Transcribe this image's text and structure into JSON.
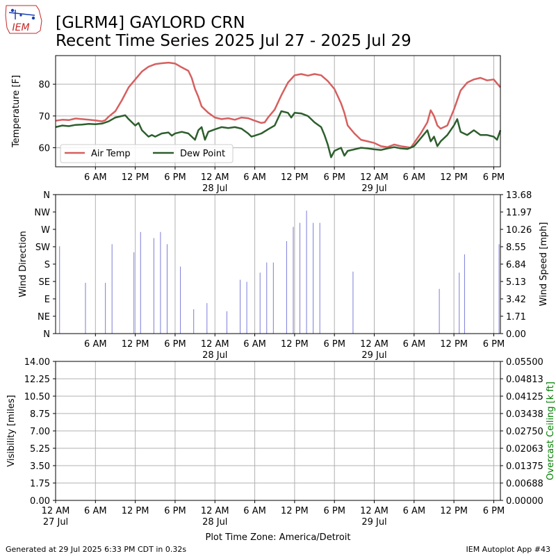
{
  "header": {
    "logo_text": "IEM",
    "title_line1": "[GLRM4] GAYLORD CRN",
    "title_line2": "Recent Time Series 2025 Jul 27 - 2025 Jul 29"
  },
  "footer": {
    "generated": "Generated at 29 Jul 2025 6:33 PM CDT in 0.32s",
    "app": "IEM Autoplot App #43",
    "xlabel": "Plot Time Zone: America/Detroit"
  },
  "colors": {
    "air_temp": "#d65f5f",
    "dew_point": "#2d5e2d",
    "wind": "#7b7bd8",
    "grid": "#b0b0b0",
    "ceiling_label": "#008000",
    "logo": "#1a3fb0",
    "logo_text": "#c62828"
  },
  "chart_data": [
    {
      "type": "line",
      "title": "",
      "xlabel": "",
      "ylabel": "Temperature [F]",
      "x_range_hours": [
        0,
        67
      ],
      "ylim": [
        54,
        89
      ],
      "yticks": [
        60,
        70,
        80
      ],
      "xticks": [
        {
          "hour": 6,
          "label": "6 AM"
        },
        {
          "hour": 12,
          "label": "12 PM"
        },
        {
          "hour": 18,
          "label": "6 PM"
        },
        {
          "hour": 24,
          "label": "12 AM",
          "sub": "28 Jul"
        },
        {
          "hour": 30,
          "label": "6 AM"
        },
        {
          "hour": 36,
          "label": "12 PM"
        },
        {
          "hour": 42,
          "label": "6 PM"
        },
        {
          "hour": 48,
          "label": "12 AM",
          "sub": "29 Jul"
        },
        {
          "hour": 54,
          "label": "6 AM"
        },
        {
          "hour": 60,
          "label": "12 PM"
        },
        {
          "hour": 66,
          "label": "6 PM"
        }
      ],
      "grid": true,
      "legend_position": "lower-left",
      "series": [
        {
          "name": "Air Temp",
          "color_key": "air_temp",
          "points": [
            [
              0,
              68.5
            ],
            [
              1,
              68.8
            ],
            [
              2,
              68.7
            ],
            [
              3,
              69.2
            ],
            [
              4,
              69
            ],
            [
              5,
              68.8
            ],
            [
              6,
              68.6
            ],
            [
              7,
              68.3
            ],
            [
              7.5,
              68.7
            ],
            [
              8,
              69.8
            ],
            [
              9,
              71.5
            ],
            [
              10,
              75
            ],
            [
              11,
              79
            ],
            [
              12,
              81.5
            ],
            [
              13,
              84
            ],
            [
              14,
              85.5
            ],
            [
              15,
              86.3
            ],
            [
              16,
              86.6
            ],
            [
              17,
              86.8
            ],
            [
              18,
              86.5
            ],
            [
              19,
              85.3
            ],
            [
              20,
              84.2
            ],
            [
              20.5,
              82
            ],
            [
              21,
              78.5
            ],
            [
              21.5,
              76
            ],
            [
              22,
              73
            ],
            [
              23,
              71
            ],
            [
              24,
              69.5
            ],
            [
              25,
              69
            ],
            [
              26,
              69.3
            ],
            [
              27,
              68.8
            ],
            [
              28,
              69.5
            ],
            [
              29,
              69.3
            ],
            [
              30,
              68.5
            ],
            [
              31,
              67.8
            ],
            [
              31.5,
              68
            ],
            [
              32,
              69.5
            ],
            [
              33,
              72
            ],
            [
              34,
              76.5
            ],
            [
              35,
              80.5
            ],
            [
              36,
              82.8
            ],
            [
              37,
              83.2
            ],
            [
              38,
              82.7
            ],
            [
              39,
              83.2
            ],
            [
              40,
              82.8
            ],
            [
              41,
              81
            ],
            [
              42,
              78.5
            ],
            [
              43,
              74
            ],
            [
              43.5,
              71
            ],
            [
              44,
              67
            ],
            [
              45,
              64.5
            ],
            [
              46,
              62.5
            ],
            [
              47,
              62
            ],
            [
              48,
              61.5
            ],
            [
              49,
              60.5
            ],
            [
              50,
              60.2
            ],
            [
              51,
              61
            ],
            [
              52,
              60.5
            ],
            [
              53,
              60.2
            ],
            [
              53.5,
              60
            ],
            [
              54,
              61.5
            ],
            [
              55,
              64.5
            ],
            [
              56,
              68
            ],
            [
              56.5,
              71.8
            ],
            [
              57,
              70
            ],
            [
              57.5,
              67
            ],
            [
              58,
              66
            ],
            [
              59,
              67
            ],
            [
              60,
              72
            ],
            [
              61,
              78
            ],
            [
              62,
              80.5
            ],
            [
              63,
              81.5
            ],
            [
              64,
              82
            ],
            [
              65,
              81.2
            ],
            [
              66,
              81.5
            ],
            [
              67,
              79
            ]
          ]
        },
        {
          "name": "Dew Point",
          "color_key": "dew_point",
          "points": [
            [
              0,
              66.5
            ],
            [
              1,
              67
            ],
            [
              2,
              66.8
            ],
            [
              3,
              67.2
            ],
            [
              4,
              67.3
            ],
            [
              5,
              67.5
            ],
            [
              6,
              67.4
            ],
            [
              7,
              67.6
            ],
            [
              8,
              68.3
            ],
            [
              9,
              69.5
            ],
            [
              10,
              70
            ],
            [
              10.5,
              70.2
            ],
            [
              11,
              69
            ],
            [
              12,
              67
            ],
            [
              12.5,
              67.8
            ],
            [
              13,
              65.5
            ],
            [
              14,
              63.5
            ],
            [
              14.5,
              64
            ],
            [
              15,
              63.5
            ],
            [
              16,
              64.5
            ],
            [
              17,
              64.8
            ],
            [
              17.5,
              63.8
            ],
            [
              18,
              64.5
            ],
            [
              19,
              65
            ],
            [
              20,
              64.5
            ],
            [
              21,
              62.5
            ],
            [
              21.5,
              65.5
            ],
            [
              22,
              66.5
            ],
            [
              22.5,
              62.5
            ],
            [
              23,
              65
            ],
            [
              24,
              65.8
            ],
            [
              25,
              66.5
            ],
            [
              26,
              66.2
            ],
            [
              27,
              66.5
            ],
            [
              28,
              66
            ],
            [
              29,
              64.5
            ],
            [
              29.5,
              63.5
            ],
            [
              30,
              63.8
            ],
            [
              31,
              64.5
            ],
            [
              32,
              65.8
            ],
            [
              33,
              67
            ],
            [
              34,
              71.5
            ],
            [
              35,
              71
            ],
            [
              35.5,
              69.5
            ],
            [
              36,
              71
            ],
            [
              37,
              70.8
            ],
            [
              38,
              70
            ],
            [
              39,
              68
            ],
            [
              40,
              66.5
            ],
            [
              40.5,
              64
            ],
            [
              41,
              61
            ],
            [
              41.5,
              57
            ],
            [
              42,
              59
            ],
            [
              43,
              60
            ],
            [
              43.5,
              57.5
            ],
            [
              44,
              59
            ],
            [
              45,
              59.5
            ],
            [
              46,
              60
            ],
            [
              47,
              59.8
            ],
            [
              48,
              59.5
            ],
            [
              49,
              59.3
            ],
            [
              50,
              59.8
            ],
            [
              51,
              60.2
            ],
            [
              52,
              59.8
            ],
            [
              53,
              59.6
            ],
            [
              54,
              60.5
            ],
            [
              55,
              63
            ],
            [
              56,
              65.5
            ],
            [
              56.5,
              62
            ],
            [
              57,
              63.5
            ],
            [
              57.5,
              60.5
            ],
            [
              58,
              62
            ],
            [
              59,
              64
            ],
            [
              60,
              67
            ],
            [
              60.5,
              69
            ],
            [
              61,
              65
            ],
            [
              62,
              64
            ],
            [
              63,
              65.5
            ],
            [
              64,
              64
            ],
            [
              65,
              64
            ],
            [
              66,
              63.5
            ],
            [
              66.5,
              62.5
            ],
            [
              67,
              65.5
            ]
          ]
        }
      ]
    },
    {
      "type": "bar",
      "title": "",
      "xlabel": "",
      "ylabel": "Wind Direction",
      "y2label": "Wind Speed [mph]",
      "x_range_hours": [
        0,
        67
      ],
      "direction_ticks": [
        "N",
        "NE",
        "E",
        "SE",
        "S",
        "SW",
        "W",
        "NW",
        "N"
      ],
      "speed_ticks": [
        "0.00",
        "1.71",
        "3.42",
        "5.13",
        "6.84",
        "8.55",
        "10.26",
        "11.97",
        "13.68"
      ],
      "y2lim": [
        0,
        13.68
      ],
      "xticks_ref": 0,
      "grid": true,
      "bars": [
        {
          "hour": 0.6,
          "speed": 8.6
        },
        {
          "hour": 4.5,
          "speed": 5.0
        },
        {
          "hour": 7.5,
          "speed": 5.0
        },
        {
          "hour": 8.5,
          "speed": 8.8
        },
        {
          "hour": 11.8,
          "speed": 8.0
        },
        {
          "hour": 12.8,
          "speed": 10.0
        },
        {
          "hour": 14.8,
          "speed": 9.4
        },
        {
          "hour": 15.8,
          "speed": 10.0
        },
        {
          "hour": 16.8,
          "speed": 8.8
        },
        {
          "hour": 18.8,
          "speed": 6.6
        },
        {
          "hour": 20.8,
          "speed": 2.4
        },
        {
          "hour": 22.8,
          "speed": 3.0
        },
        {
          "hour": 25.8,
          "speed": 2.2
        },
        {
          "hour": 27.8,
          "speed": 5.3
        },
        {
          "hour": 28.8,
          "speed": 5.1
        },
        {
          "hour": 30.8,
          "speed": 6.0
        },
        {
          "hour": 31.8,
          "speed": 7.0
        },
        {
          "hour": 32.8,
          "speed": 7.0
        },
        {
          "hour": 34.8,
          "speed": 9.1
        },
        {
          "hour": 35.8,
          "speed": 10.5
        },
        {
          "hour": 36.8,
          "speed": 10.9
        },
        {
          "hour": 37.8,
          "speed": 12.1
        },
        {
          "hour": 38.8,
          "speed": 10.9
        },
        {
          "hour": 39.8,
          "speed": 10.9
        },
        {
          "hour": 44.8,
          "speed": 6.1
        },
        {
          "hour": 57.8,
          "speed": 4.4
        },
        {
          "hour": 60.8,
          "speed": 6.0
        },
        {
          "hour": 61.6,
          "speed": 7.8
        },
        {
          "hour": 66.8,
          "speed": 8.8
        }
      ]
    },
    {
      "type": "line",
      "title": "",
      "xlabel": "Plot Time Zone: America/Detroit",
      "ylabel": "Visibility [miles]",
      "y2label": "Overcast Ceiling [k ft]",
      "x_range_hours": [
        0,
        67
      ],
      "ylim": [
        0,
        14
      ],
      "y2lim": [
        0,
        0.055
      ],
      "yticks": [
        "0.00",
        "1.75",
        "3.50",
        "5.25",
        "7.00",
        "8.75",
        "10.50",
        "12.25",
        "14.00"
      ],
      "y2ticks": [
        "0.00000",
        "0.00688",
        "0.01375",
        "0.02063",
        "0.02750",
        "0.03438",
        "0.04125",
        "0.04813",
        "0.05500"
      ],
      "xticks": [
        {
          "hour": 0,
          "label": "12 AM",
          "sub": "27 Jul"
        },
        {
          "hour": 6,
          "label": "6 AM"
        },
        {
          "hour": 12,
          "label": "12 PM"
        },
        {
          "hour": 18,
          "label": "6 PM"
        },
        {
          "hour": 24,
          "label": "12 AM",
          "sub": "28 Jul"
        },
        {
          "hour": 30,
          "label": "6 AM"
        },
        {
          "hour": 36,
          "label": "12 PM"
        },
        {
          "hour": 42,
          "label": "6 PM"
        },
        {
          "hour": 48,
          "label": "12 AM",
          "sub": "29 Jul"
        },
        {
          "hour": 54,
          "label": "6 AM"
        },
        {
          "hour": 60,
          "label": "12 PM"
        },
        {
          "hour": 66,
          "label": "6 PM"
        }
      ],
      "grid": true,
      "series": []
    }
  ]
}
